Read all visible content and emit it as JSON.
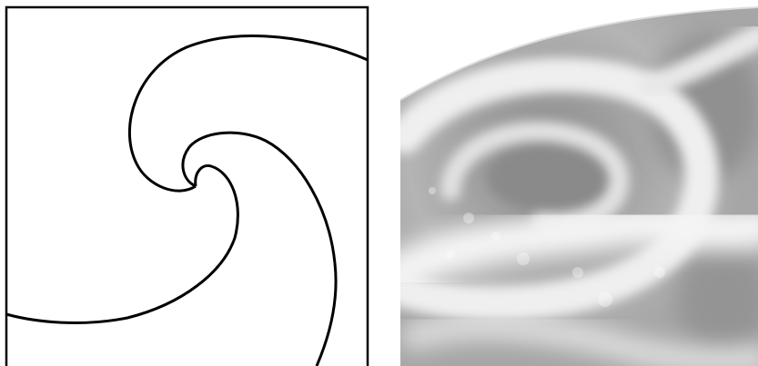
{
  "figure": {
    "left_panel": {
      "kind": "line-drawing-spiral",
      "stroke_color": "#000000",
      "frame_color": "#000000",
      "background": "#ffffff",
      "arm_count": 2
    },
    "right_panel": {
      "kind": "satellite-cloud-photograph",
      "palette": [
        "#8f8f8f",
        "#a9a9a9",
        "#cfcfcf",
        "#ececec",
        "#ffffff"
      ],
      "subject": "cyclonic-cloud-swirl-over-earth-limb"
    }
  }
}
